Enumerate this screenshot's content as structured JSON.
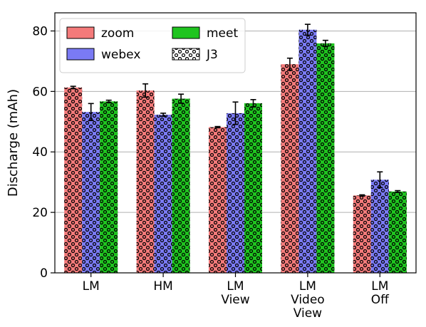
{
  "chart_data": {
    "type": "bar",
    "categories": [
      [
        "LM"
      ],
      [
        "HM"
      ],
      [
        "LM",
        "View"
      ],
      [
        "LM",
        "Video",
        "View"
      ],
      [
        "LM",
        "Off"
      ]
    ],
    "ylabel": "Discharge (mAh)",
    "xlabel": "",
    "ylim": [
      0,
      86
    ],
    "yticks": [
      0,
      20,
      40,
      60,
      80
    ],
    "grid": "horizontal",
    "legend_position": "top-left",
    "pattern": "J3",
    "series": [
      {
        "name": "zoom",
        "color": "#f47a7a",
        "values": [
          61.3,
          60.3,
          48.2,
          69.0,
          25.6
        ],
        "errors": [
          0.4,
          2.2,
          0.2,
          2.0,
          0.2
        ]
      },
      {
        "name": "webex",
        "color": "#7a7af4",
        "values": [
          53.2,
          52.3,
          52.8,
          80.4,
          30.8
        ],
        "errors": [
          2.8,
          0.5,
          3.7,
          1.8,
          2.6
        ]
      },
      {
        "name": "meet",
        "color": "#1fc41f",
        "values": [
          56.7,
          57.6,
          56.1,
          75.9,
          26.9
        ],
        "errors": [
          0.4,
          1.5,
          1.2,
          1.0,
          0.3
        ]
      }
    ],
    "legend": [
      "zoom",
      "meet",
      "webex",
      "J3"
    ]
  }
}
